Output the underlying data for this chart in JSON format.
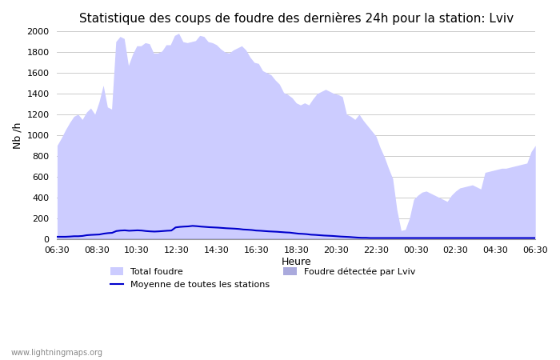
{
  "title": "Statistique des coups de foudre des dernières 24h pour la station: Lviv",
  "xlabel": "Heure",
  "ylabel": "Nb /h",
  "ylim": [
    0,
    2000
  ],
  "yticks": [
    0,
    200,
    400,
    600,
    800,
    1000,
    1200,
    1400,
    1600,
    1800,
    2000
  ],
  "xtick_labels": [
    "06:30",
    "08:30",
    "10:30",
    "12:30",
    "14:30",
    "16:30",
    "18:30",
    "20:30",
    "22:30",
    "00:30",
    "02:30",
    "04:30",
    "06:30"
  ],
  "watermark": "www.lightningmaps.org",
  "bg_color": "#ffffff",
  "grid_color": "#cccccc",
  "total_foudre_color": "#ccccff",
  "detected_foudre_color": "#aaaadd",
  "mean_line_color": "#0000cc",
  "total_foudre": [
    900,
    970,
    1050,
    1120,
    1180,
    1200,
    1150,
    1220,
    1260,
    1200,
    1320,
    1480,
    1270,
    1250,
    1900,
    1950,
    1930,
    1670,
    1780,
    1860,
    1860,
    1890,
    1880,
    1790,
    1790,
    1810,
    1870,
    1870,
    1960,
    1980,
    1900,
    1890,
    1900,
    1910,
    1960,
    1950,
    1900,
    1890,
    1870,
    1830,
    1800,
    1790,
    1820,
    1840,
    1860,
    1820,
    1750,
    1700,
    1690,
    1620,
    1600,
    1580,
    1530,
    1490,
    1410,
    1390,
    1360,
    1310,
    1290,
    1310,
    1290,
    1350,
    1400,
    1420,
    1440,
    1420,
    1400,
    1390,
    1370,
    1200,
    1180,
    1150,
    1200,
    1140,
    1090,
    1040,
    990,
    880,
    790,
    680,
    580,
    280,
    80,
    90,
    200,
    380,
    420,
    450,
    460,
    440,
    420,
    400,
    380,
    360,
    420,
    460,
    490,
    500,
    510,
    520,
    500,
    480,
    640,
    650,
    660,
    670,
    680,
    680,
    690,
    700,
    710,
    720,
    730,
    840,
    900
  ],
  "detected_foudre": [
    5,
    5,
    5,
    5,
    5,
    5,
    5,
    5,
    5,
    5,
    5,
    5,
    5,
    5,
    5,
    5,
    5,
    5,
    5,
    5,
    5,
    5,
    5,
    5,
    5,
    5,
    5,
    5,
    5,
    5,
    5,
    5,
    5,
    5,
    5,
    5,
    5,
    5,
    5,
    5,
    5,
    5,
    5,
    5,
    5,
    5,
    5,
    5,
    5,
    5,
    5,
    5,
    5,
    5,
    5,
    5,
    5,
    5,
    5,
    5,
    5,
    5,
    5,
    5,
    5,
    5,
    5,
    5,
    5,
    5,
    5,
    5,
    5,
    5,
    5,
    5,
    5,
    5,
    5,
    5,
    5,
    5,
    5,
    5,
    5,
    5,
    5,
    5,
    5,
    5,
    5,
    5,
    5,
    5,
    5,
    5,
    5,
    5,
    5,
    5,
    5,
    5,
    5,
    5,
    5,
    5,
    5,
    5,
    5,
    5,
    5,
    5,
    5,
    5
  ],
  "mean_line": [
    20,
    20,
    20,
    22,
    25,
    25,
    28,
    35,
    38,
    40,
    42,
    50,
    55,
    58,
    75,
    80,
    82,
    78,
    80,
    82,
    80,
    75,
    72,
    70,
    72,
    75,
    78,
    80,
    110,
    115,
    118,
    120,
    125,
    122,
    118,
    115,
    112,
    110,
    108,
    105,
    102,
    100,
    98,
    95,
    90,
    88,
    85,
    80,
    78,
    75,
    72,
    70,
    68,
    65,
    62,
    60,
    55,
    50,
    48,
    45,
    40,
    38,
    35,
    32,
    30,
    28,
    25,
    22,
    20,
    18,
    15,
    12,
    10,
    10,
    8,
    8,
    8,
    8,
    8,
    8,
    8,
    8,
    8,
    8,
    8,
    8,
    8,
    8,
    8,
    8,
    8,
    8,
    8,
    8,
    8,
    8,
    8,
    8,
    8,
    8,
    8,
    8,
    8,
    8,
    8,
    8,
    8,
    8,
    8,
    8,
    8,
    8,
    8,
    8
  ]
}
